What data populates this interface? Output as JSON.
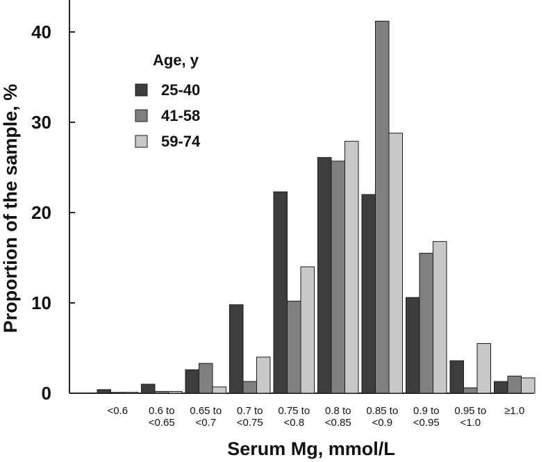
{
  "chart_data": {
    "type": "bar",
    "xlabel": "Serum Mg, mmol/L",
    "ylabel": "Proportion of the sample, %",
    "ylim": [
      0,
      45
    ],
    "yticks": [
      0,
      10,
      20,
      30,
      40
    ],
    "grid": false,
    "legend_position": "top-left",
    "legend_title": "Age, y",
    "categories": [
      [
        "<0.6"
      ],
      [
        "0.6 to",
        "<0.65"
      ],
      [
        "0.65 to",
        "<0.7"
      ],
      [
        "0.7 to",
        "<0.75"
      ],
      [
        "0.75 to",
        "<0.8"
      ],
      [
        "0.8 to",
        "<0.85"
      ],
      [
        "0.85 to",
        "<0.9"
      ],
      [
        "0.9 to",
        "<0.95"
      ],
      [
        "0.95 to",
        "<1.0"
      ],
      [
        "≥1.0"
      ]
    ],
    "series": [
      {
        "name": "25-40",
        "color": "#3d3d3d",
        "values": [
          0.4,
          1.0,
          2.6,
          9.8,
          22.3,
          26.1,
          22.0,
          10.6,
          3.6,
          1.3
        ]
      },
      {
        "name": "41-58",
        "color": "#808080",
        "values": [
          0.1,
          0.2,
          3.3,
          1.3,
          10.2,
          25.7,
          41.2,
          15.5,
          0.6,
          1.9
        ]
      },
      {
        "name": "59-74",
        "color": "#c8c8c8",
        "values": [
          0.1,
          0.2,
          0.7,
          4.0,
          14.0,
          27.9,
          28.8,
          16.8,
          5.5,
          1.7
        ]
      }
    ]
  }
}
